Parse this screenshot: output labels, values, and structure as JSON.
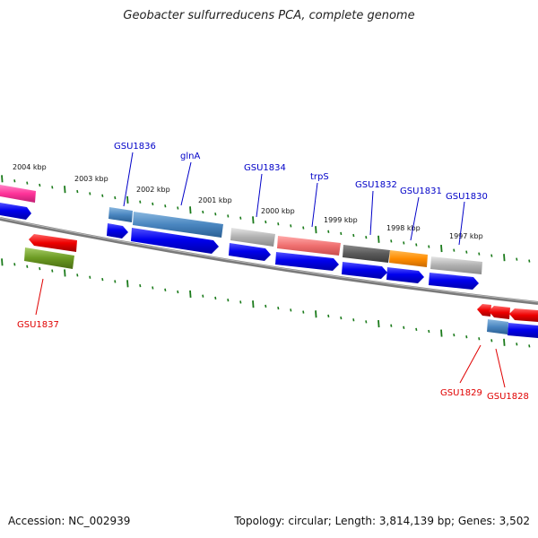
{
  "title": "Geobacter sulfurreducens PCA, complete genome",
  "footer": {
    "accession": "Accession: NC_002939",
    "topology": "Topology: circular; Length: 3,814,139 bp; Genes: 3,502"
  },
  "scale_labels": [
    "2004 kbp",
    "2003 kbp",
    "2002 kbp",
    "2001 kbp",
    "2000 kbp",
    "1999 kbp",
    "1998 kbp",
    "1997 kbp"
  ],
  "gene_labels": [
    {
      "text": "GSU1836",
      "color": "#0000c8"
    },
    {
      "text": "glnA",
      "color": "#0000c8"
    },
    {
      "text": "GSU1834",
      "color": "#0000c8"
    },
    {
      "text": "trpS",
      "color": "#0000c8"
    },
    {
      "text": "GSU1832",
      "color": "#0000c8"
    },
    {
      "text": "GSU1831",
      "color": "#0000c8"
    },
    {
      "text": "GSU1830",
      "color": "#0000c8"
    },
    {
      "text": "GSU1837",
      "color": "#e00000"
    },
    {
      "text": "GSU1829",
      "color": "#e00000"
    },
    {
      "text": "GSU1828",
      "color": "#e00000"
    }
  ],
  "colors": {
    "backbone": "#808080",
    "tick": "#1a7a1a",
    "cds": "#0000ee",
    "blue_feature": "#4a86c0",
    "pink": "#ff3399",
    "red": "#ee0000",
    "olive": "#6b9a22",
    "salmon": "#f07070",
    "gray": "#b0b0b0",
    "dark_gray": "#5a5a5a",
    "orange": "#ff8c00"
  }
}
